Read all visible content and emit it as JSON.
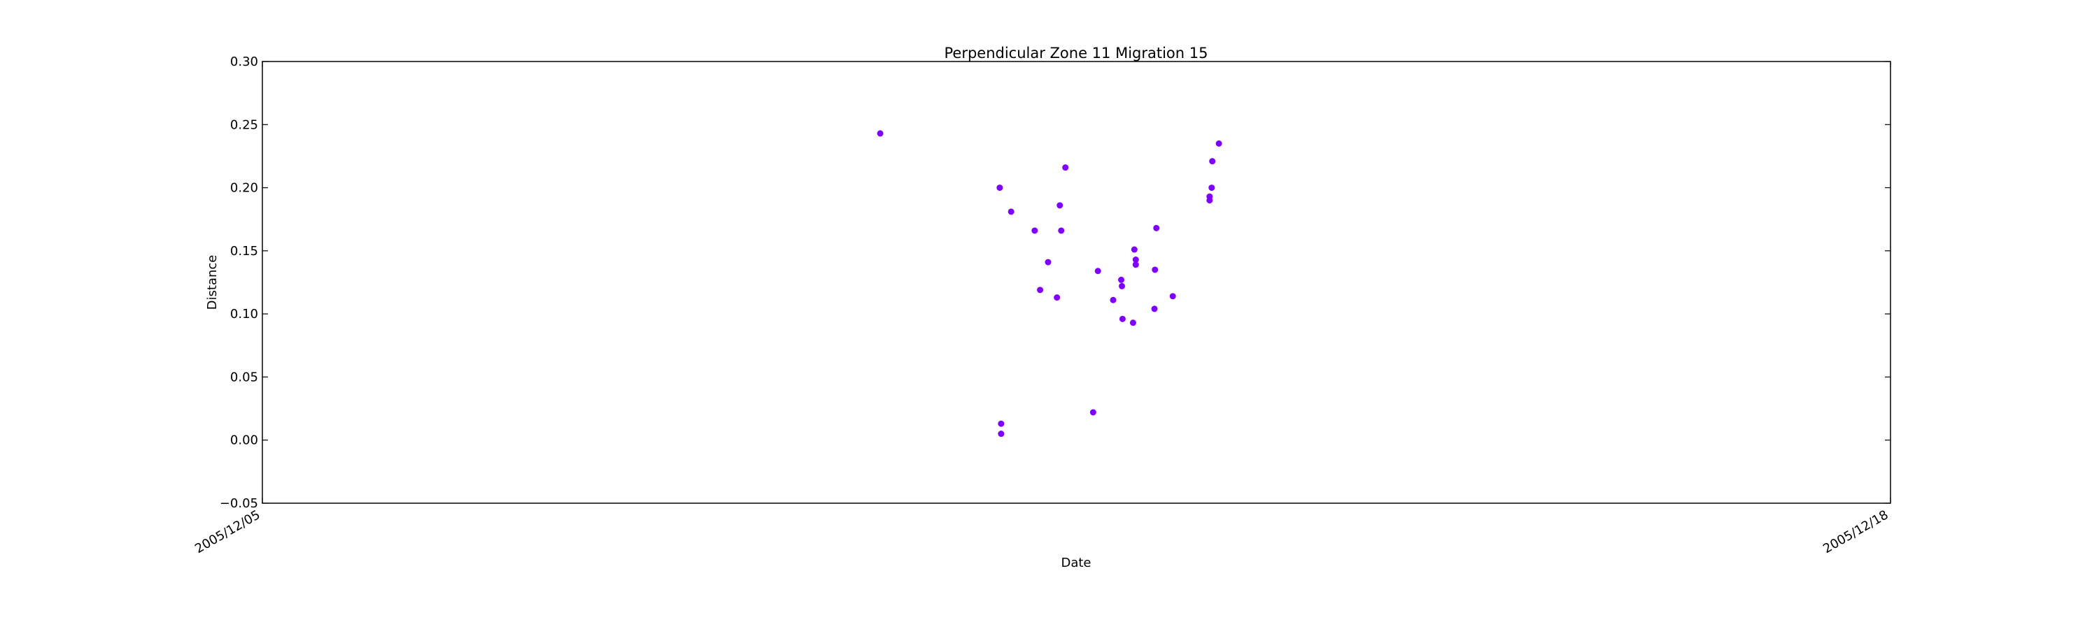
{
  "chart_data": {
    "type": "scatter",
    "title": "Perpendicular Zone 11 Migration 15",
    "xlabel": "Date",
    "ylabel": "Distance",
    "xlim": [
      "2005-12-05T00:00",
      "2005-12-18T00:00"
    ],
    "ylim": [
      -0.05,
      0.3
    ],
    "x_tick_labels": [
      "2005/12/05",
      "2005/12/18"
    ],
    "y_ticks": [
      -0.05,
      0.0,
      0.05,
      0.1,
      0.15,
      0.2,
      0.25,
      0.3
    ],
    "y_tick_labels": [
      "−0.05",
      "0.00",
      "0.05",
      "0.10",
      "0.15",
      "0.20",
      "0.25",
      "0.30"
    ],
    "grid": false,
    "legend": false,
    "marker_color": "#7f00ff",
    "series": [
      {
        "points": [
          {
            "x": "2005-12-09T22:24",
            "y": 0.243
          },
          {
            "x": "2005-12-10T21:18",
            "y": 0.2
          },
          {
            "x": "2005-12-10T21:34",
            "y": 0.013
          },
          {
            "x": "2005-12-10T21:34",
            "y": 0.005
          },
          {
            "x": "2005-12-10T23:29",
            "y": 0.181
          },
          {
            "x": "2005-12-11T04:00",
            "y": 0.166
          },
          {
            "x": "2005-12-11T05:02",
            "y": 0.119
          },
          {
            "x": "2005-12-11T06:34",
            "y": 0.141
          },
          {
            "x": "2005-12-11T08:16",
            "y": 0.113
          },
          {
            "x": "2005-12-11T08:49",
            "y": 0.186
          },
          {
            "x": "2005-12-11T09:05",
            "y": 0.166
          },
          {
            "x": "2005-12-11T09:53",
            "y": 0.216
          },
          {
            "x": "2005-12-11T15:12",
            "y": 0.022
          },
          {
            "x": "2005-12-11T16:07",
            "y": 0.134
          },
          {
            "x": "2005-12-11T19:02",
            "y": 0.111
          },
          {
            "x": "2005-12-11T20:35",
            "y": 0.127
          },
          {
            "x": "2005-12-11T20:43",
            "y": 0.122
          },
          {
            "x": "2005-12-11T20:50",
            "y": 0.096
          },
          {
            "x": "2005-12-11T22:51",
            "y": 0.093
          },
          {
            "x": "2005-12-11T23:06",
            "y": 0.151
          },
          {
            "x": "2005-12-11T23:22",
            "y": 0.143
          },
          {
            "x": "2005-12-11T23:22",
            "y": 0.139
          },
          {
            "x": "2005-12-12T02:57",
            "y": 0.104
          },
          {
            "x": "2005-12-12T03:03",
            "y": 0.135
          },
          {
            "x": "2005-12-12T03:19",
            "y": 0.168
          },
          {
            "x": "2005-12-12T06:28",
            "y": 0.114
          },
          {
            "x": "2005-12-12T13:31",
            "y": 0.193
          },
          {
            "x": "2005-12-12T13:31",
            "y": 0.19
          },
          {
            "x": "2005-12-12T13:55",
            "y": 0.2
          },
          {
            "x": "2005-12-12T14:02",
            "y": 0.221
          },
          {
            "x": "2005-12-12T15:18",
            "y": 0.235
          }
        ]
      }
    ]
  }
}
